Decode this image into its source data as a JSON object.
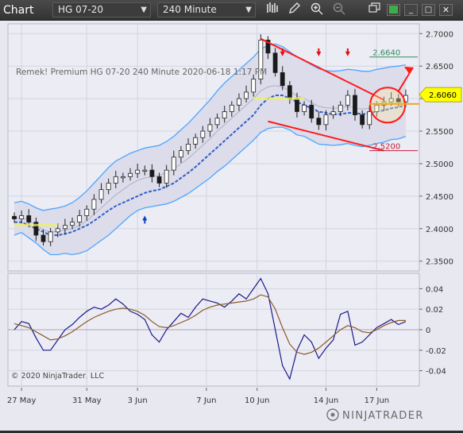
{
  "toolbar": {
    "title": "Chart",
    "instrument": "HG 07-20",
    "interval": "240 Minute",
    "icons": [
      "bar-chart-icon",
      "pencil-icon",
      "zoom-in-icon",
      "zoom-out-icon",
      "window-restore-icon",
      "color-swatch-icon",
      "minimize-icon",
      "maximize-icon",
      "close-icon"
    ]
  },
  "chart_data": [
    {
      "type": "line",
      "panel": "price",
      "title": "Remek!  Premium  HG 07-20  240 Minute  2020-06-18 1:17 PM",
      "ylim": [
        2.335,
        2.715
      ],
      "yticks": [
        2.35,
        2.4,
        2.45,
        2.5,
        2.55,
        2.6,
        2.65,
        2.7
      ],
      "ytick_labels": [
        "2.3500",
        "2.4000",
        "2.4500",
        "2.5000",
        "2.5500",
        "2.6000",
        "2.6500",
        "2.7000"
      ],
      "grid": true,
      "xlim": [
        0,
        110
      ],
      "x_ticks": [
        {
          "x": 2,
          "label": "27 May"
        },
        {
          "x": 20,
          "label": "31 May"
        },
        {
          "x": 34,
          "label": "3 Jun"
        },
        {
          "x": 53,
          "label": "7 Jun"
        },
        {
          "x": 67,
          "label": "10 Jun"
        },
        {
          "x": 86,
          "label": "14 Jun"
        },
        {
          "x": 100,
          "label": "17 Jun"
        }
      ],
      "x": [
        0,
        2,
        4,
        6,
        8,
        10,
        12,
        14,
        16,
        18,
        20,
        22,
        24,
        26,
        28,
        30,
        32,
        34,
        36,
        38,
        40,
        42,
        44,
        46,
        48,
        50,
        52,
        54,
        56,
        58,
        60,
        62,
        64,
        66,
        68,
        70,
        72,
        74,
        76,
        78,
        80,
        82,
        84,
        86,
        88,
        90,
        92,
        94,
        96,
        98,
        100,
        102,
        104,
        106,
        108
      ],
      "close": [
        2.415,
        2.42,
        2.41,
        2.39,
        2.38,
        2.395,
        2.4,
        2.405,
        2.41,
        2.42,
        2.43,
        2.445,
        2.46,
        2.47,
        2.48,
        2.48,
        2.485,
        2.49,
        2.49,
        2.48,
        2.47,
        2.49,
        2.51,
        2.52,
        2.53,
        2.54,
        2.55,
        2.56,
        2.57,
        2.58,
        2.59,
        2.6,
        2.61,
        2.63,
        2.69,
        2.67,
        2.64,
        2.62,
        2.6,
        2.58,
        2.59,
        2.57,
        2.56,
        2.575,
        2.58,
        2.59,
        2.605,
        2.575,
        2.56,
        2.58,
        2.59,
        2.595,
        2.6,
        2.595,
        2.605
      ],
      "series": [
        {
          "name": "",
          "values": [
            2.415,
            2.418,
            2.412,
            2.405,
            2.398,
            2.395,
            2.396,
            2.398,
            2.4,
            2.405,
            2.412,
            2.422,
            2.432,
            2.442,
            2.452,
            2.46,
            2.468,
            2.474,
            2.478,
            2.48,
            2.482,
            2.486,
            2.492,
            2.5,
            2.508,
            2.518,
            2.528,
            2.538,
            2.55,
            2.56,
            2.57,
            2.58,
            2.59,
            2.6,
            2.612,
            2.618,
            2.62,
            2.618,
            2.612,
            2.604,
            2.6,
            2.594,
            2.588,
            2.586,
            2.585,
            2.586,
            2.588,
            2.586,
            2.584,
            2.585,
            2.588,
            2.59,
            2.593,
            2.594,
            2.597
          ]
        },
        {
          "name": "",
          "values": [
            2.44,
            2.442,
            2.438,
            2.432,
            2.428,
            2.43,
            2.432,
            2.435,
            2.44,
            2.448,
            2.458,
            2.47,
            2.482,
            2.494,
            2.504,
            2.51,
            2.516,
            2.52,
            2.524,
            2.526,
            2.528,
            2.534,
            2.542,
            2.552,
            2.562,
            2.574,
            2.586,
            2.598,
            2.612,
            2.624,
            2.634,
            2.644,
            2.654,
            2.664,
            2.676,
            2.682,
            2.684,
            2.68,
            2.672,
            2.664,
            2.658,
            2.652,
            2.646,
            2.643,
            2.642,
            2.643,
            2.645,
            2.644,
            2.642,
            2.642,
            2.645,
            2.647,
            2.649,
            2.65,
            2.652
          ]
        },
        {
          "name": "",
          "values": [
            2.39,
            2.394,
            2.386,
            2.378,
            2.368,
            2.36,
            2.36,
            2.362,
            2.36,
            2.362,
            2.366,
            2.374,
            2.382,
            2.39,
            2.4,
            2.41,
            2.42,
            2.428,
            2.432,
            2.434,
            2.436,
            2.438,
            2.442,
            2.448,
            2.454,
            2.462,
            2.47,
            2.478,
            2.488,
            2.496,
            2.506,
            2.516,
            2.526,
            2.536,
            2.548,
            2.554,
            2.556,
            2.556,
            2.552,
            2.544,
            2.542,
            2.536,
            2.53,
            2.529,
            2.528,
            2.529,
            2.531,
            2.528,
            2.526,
            2.528,
            2.531,
            2.533,
            2.537,
            2.538,
            2.542
          ]
        }
      ],
      "dashed_series": [
        2.41,
        2.41,
        2.405,
        2.4,
        2.395,
        2.39,
        2.39,
        2.392,
        2.395,
        2.4,
        2.405,
        2.412,
        2.42,
        2.428,
        2.435,
        2.44,
        2.445,
        2.45,
        2.455,
        2.458,
        2.46,
        2.465,
        2.47,
        2.478,
        2.486,
        2.495,
        2.505,
        2.515,
        2.525,
        2.535,
        2.545,
        2.555,
        2.565,
        2.575,
        2.59,
        2.6,
        2.605,
        2.605,
        2.6,
        2.595,
        2.59,
        2.585,
        2.58,
        2.578,
        2.576,
        2.576,
        2.578,
        2.578,
        2.576,
        2.578,
        2.58,
        2.582,
        2.585,
        2.587,
        2.59
      ],
      "levels": [
        {
          "label": "2.6640",
          "value": 2.664,
          "color": "#2e8b57"
        },
        {
          "label": "2.5200",
          "value": 2.52,
          "color": "#c41e3a"
        }
      ],
      "current_price": {
        "label": "2.6060",
        "value": 2.606
      },
      "avg_line_value": 2.5918,
      "up_arrow_x": 36,
      "down_arrow_xs": [
        74,
        84,
        92
      ],
      "copyright": "© 2020 NinjaTrader, LLC"
    },
    {
      "type": "line",
      "panel": "oscillator",
      "ylim": [
        -0.055,
        0.055
      ],
      "yticks": [
        0.04,
        0.02,
        0,
        -0.02,
        -0.04
      ],
      "ytick_labels": [
        "0.04",
        "0.02",
        "0",
        "-0.02",
        "-0.04"
      ],
      "grid": true,
      "x": [
        0,
        2,
        4,
        6,
        8,
        10,
        12,
        14,
        16,
        18,
        20,
        22,
        24,
        26,
        28,
        30,
        32,
        34,
        36,
        38,
        40,
        42,
        44,
        46,
        48,
        50,
        52,
        54,
        56,
        58,
        60,
        62,
        64,
        66,
        68,
        70,
        72,
        74,
        76,
        78,
        80,
        82,
        84,
        86,
        88,
        90,
        92,
        94,
        96,
        98,
        100,
        102,
        104,
        106,
        108
      ],
      "series": [
        {
          "name": "",
          "color": "#1a1a8c",
          "values": [
            0,
            0.008,
            0.006,
            -0.008,
            -0.02,
            -0.02,
            -0.01,
            0,
            0.005,
            0.012,
            0.018,
            0.022,
            0.02,
            0.024,
            0.03,
            0.025,
            0.018,
            0.015,
            0.01,
            -0.005,
            -0.012,
            0,
            0.008,
            0.016,
            0.012,
            0.022,
            0.03,
            0.028,
            0.026,
            0.022,
            0.028,
            0.035,
            0.03,
            0.04,
            0.05,
            0.035,
            0,
            -0.035,
            -0.048,
            -0.02,
            -0.005,
            -0.012,
            -0.028,
            -0.018,
            -0.01,
            0.015,
            0.018,
            -0.015,
            -0.012,
            -0.005,
            0.002,
            0.006,
            0.01,
            0.005,
            0.008
          ]
        },
        {
          "name": "",
          "color": "#8b5a2b",
          "values": [
            0.006,
            0.004,
            0.002,
            -0.002,
            -0.006,
            -0.01,
            -0.009,
            -0.006,
            -0.002,
            0.003,
            0.008,
            0.012,
            0.015,
            0.018,
            0.02,
            0.021,
            0.02,
            0.018,
            0.014,
            0.008,
            0.003,
            0.002,
            0.004,
            0.007,
            0.01,
            0.014,
            0.019,
            0.022,
            0.024,
            0.025,
            0.026,
            0.027,
            0.028,
            0.03,
            0.034,
            0.032,
            0.02,
            0.002,
            -0.014,
            -0.022,
            -0.024,
            -0.022,
            -0.018,
            -0.012,
            -0.006,
            0,
            0.004,
            0.002,
            -0.002,
            -0.003,
            0,
            0.004,
            0.007,
            0.009,
            0.009
          ]
        }
      ]
    }
  ]
}
